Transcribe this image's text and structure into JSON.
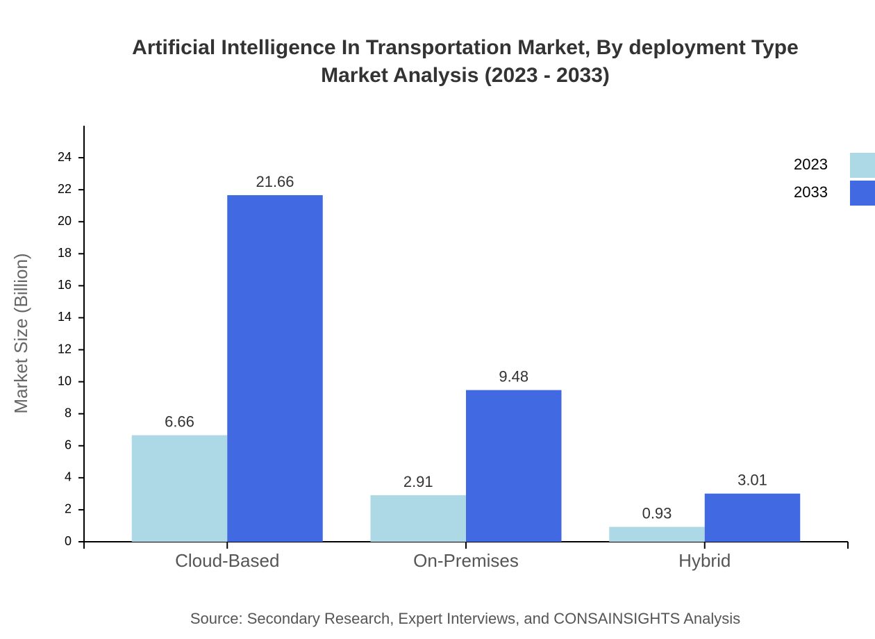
{
  "chart_data": {
    "type": "bar",
    "title": "Artificial Intelligence In Transportation Market, By deployment Type",
    "subtitle": "Market Analysis (2023 - 2033)",
    "y_label": "Market Size (Billion)",
    "source": "Source: Secondary Research, Expert Interviews, and CONSAINSIGHTS Analysis",
    "categories": [
      "Cloud-Based",
      "On-Premises",
      "Hybrid"
    ],
    "series": [
      {
        "name": "2023",
        "color": "#add8e6",
        "values": [
          6.66,
          2.91,
          0.93
        ]
      },
      {
        "name": "2033",
        "color": "#4169e1",
        "values": [
          21.66,
          9.48,
          3.01
        ]
      }
    ],
    "ylim": [
      0,
      26
    ],
    "yticks": [
      0,
      2,
      4,
      6,
      8,
      10,
      12,
      14,
      16,
      18,
      20,
      22,
      24
    ],
    "legend": "top-right"
  }
}
